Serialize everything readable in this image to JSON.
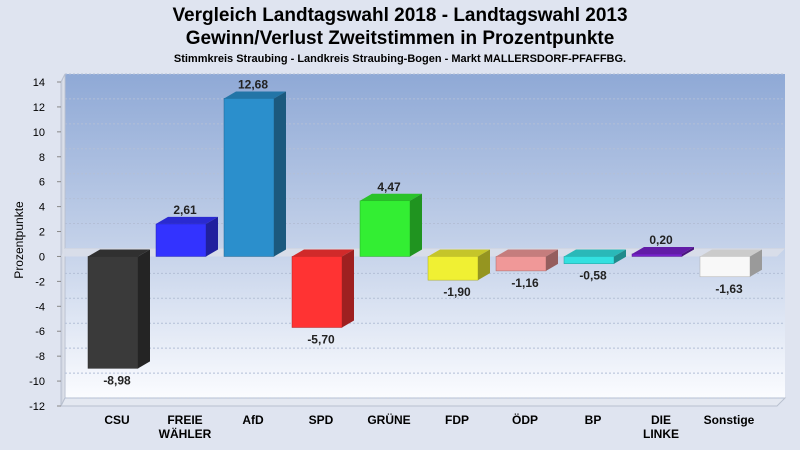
{
  "title_line1": "Vergleich Landtagswahl 2018 - Landtagswahl 2013",
  "title_line2": "Gewinn/Verlust Zweitstimmen in Prozentpunkte",
  "subtitle": "Stimmkreis Straubing - Landkreis Straubing-Bogen - Markt MALLERSDORF-PFAFFBG.",
  "chart_data": {
    "type": "bar",
    "title": "Vergleich Landtagswahl 2018 - Landtagswahl 2013",
    "ylabel": "Prozentpunkte",
    "xlabel": "",
    "ylim": [
      -12,
      14
    ],
    "yticks": [
      14,
      12,
      10,
      8,
      6,
      4,
      2,
      0,
      -2,
      -4,
      -6,
      -8,
      -10,
      -12
    ],
    "grid": true,
    "legend": "none",
    "categories": [
      [
        "CSU"
      ],
      [
        "FREIE",
        "WÄHLER"
      ],
      [
        "AfD"
      ],
      [
        "SPD"
      ],
      [
        "GRÜNE"
      ],
      [
        "FDP"
      ],
      [
        "ÖDP"
      ],
      [
        "BP"
      ],
      [
        "DIE",
        "LINKE"
      ],
      [
        "Sonstige"
      ]
    ],
    "values": [
      -8.98,
      2.61,
      12.68,
      -5.7,
      4.47,
      -1.9,
      -1.16,
      -0.58,
      0.2,
      -1.63
    ],
    "value_labels": [
      "-8,98",
      "2,61",
      "12,68",
      "-5,70",
      "4,47",
      "-1,90",
      "-1,16",
      "-0,58",
      "0,20",
      "-1,63"
    ],
    "colors": [
      "#3a3a3a",
      "#3333ff",
      "#2b8fcc",
      "#ff3333",
      "#33ee33",
      "#f0f033",
      "#f09898",
      "#33e0e0",
      "#7722cc",
      "#f8f8f8"
    ]
  }
}
